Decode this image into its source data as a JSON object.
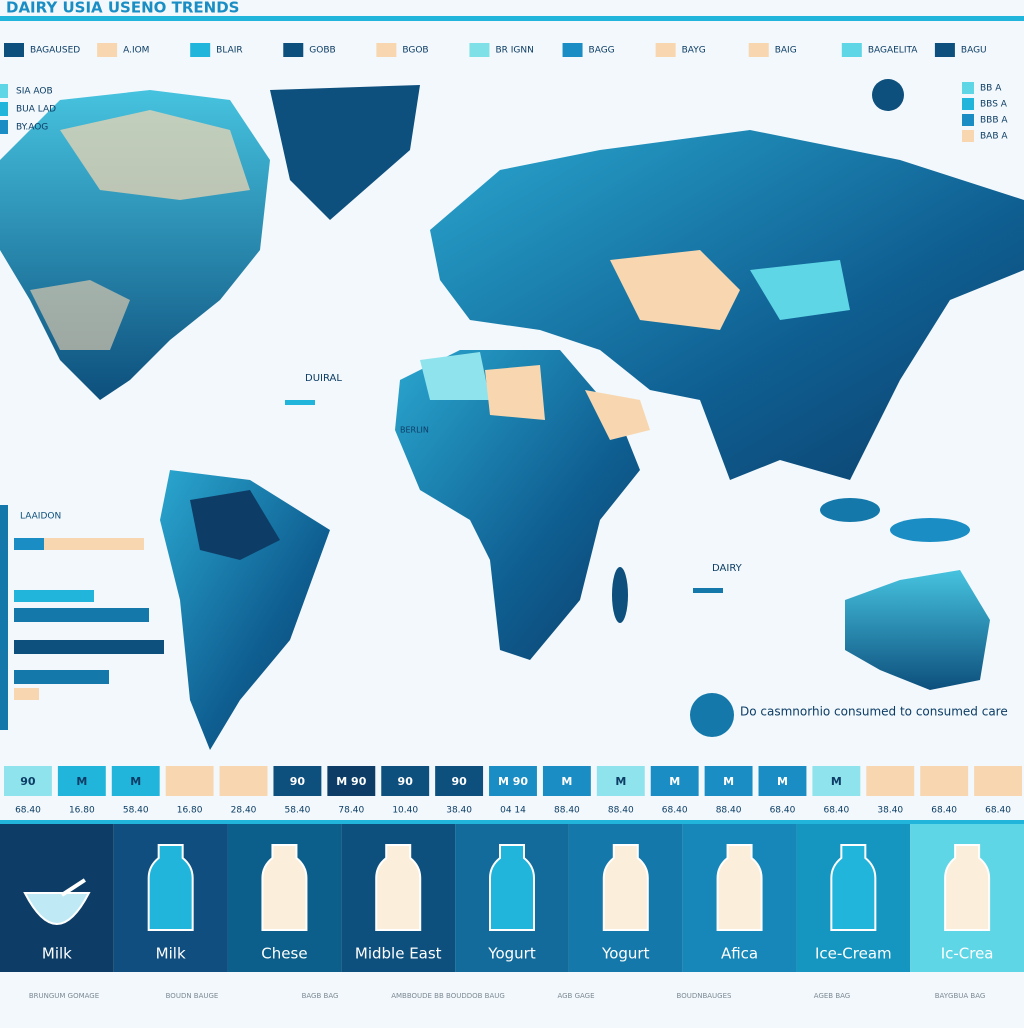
{
  "header": {
    "title": "DAIRY USIA USENO TRENDS"
  },
  "legend": [
    {
      "label": "BAGAUSED",
      "color": "#0d4f7d"
    },
    {
      "label": "A.IOM",
      "color": "#f8d7b0"
    },
    {
      "label": "BLAIR",
      "color": "#22b5dc"
    },
    {
      "label": "GOBB",
      "color": "#0d4f7d"
    },
    {
      "label": "BGOB",
      "color": "#f8d7b0"
    },
    {
      "label": "BR IGNN",
      "color": "#7fe0e8"
    },
    {
      "label": "BAGG",
      "color": "#1a8ec4"
    },
    {
      "label": "BAYG",
      "color": "#f8d7b0"
    },
    {
      "label": "BAIG",
      "color": "#f8d7b0"
    },
    {
      "label": "BAGAELITA",
      "color": "#5fd6e6"
    },
    {
      "label": "BAGU",
      "color": "#0d4f7d"
    }
  ],
  "map_key_left": [
    "SIA AOB",
    "BUA LAD",
    "BY.AOG"
  ],
  "map_key_right": [
    "BB A",
    "BBS A",
    "BBB A",
    "BAB A"
  ],
  "map_labels": {
    "west": "DUIRAL",
    "east": "DAIRY",
    "region": "BERLIN",
    "bars": "LAAIDON"
  },
  "note": "Do casmnorhio consumed to consumed care",
  "tiles": [
    {
      "value": "90",
      "label": "68.40",
      "color": "#8fe3ec"
    },
    {
      "value": "M",
      "label": "16.80",
      "color": "#22b5dc"
    },
    {
      "value": "M",
      "label": "58.40",
      "color": "#22b5dc"
    },
    {
      "label": "16.80",
      "color": "#f8d7b0"
    },
    {
      "label": "28.40",
      "color": "#f8d7b0"
    },
    {
      "value": "90",
      "label": "58.40",
      "color": "#0d4f7d"
    },
    {
      "value": "M 90",
      "label": "78.40",
      "color": "#0d3d66"
    },
    {
      "value": "90",
      "label": "10.40",
      "color": "#0d4f7d"
    },
    {
      "value": "90",
      "label": "38.40",
      "color": "#0d4f7d"
    },
    {
      "value": "M 90",
      "label": "04 14",
      "color": "#1a8ec4"
    },
    {
      "value": "M",
      "label": "88.40",
      "color": "#1a8ec4"
    },
    {
      "value": "M",
      "label": "88.40",
      "color": "#8fe3ec"
    },
    {
      "value": "M",
      "label": "68.40",
      "color": "#1a8ec4"
    },
    {
      "value": "M",
      "label": "88.40",
      "color": "#1a8ec4"
    },
    {
      "value": "M",
      "label": "68.40",
      "color": "#1a8ec4"
    },
    {
      "value": "M",
      "label": "68.40",
      "color": "#8fe3ec"
    },
    {
      "label": "38.40",
      "color": "#f8d7b0"
    },
    {
      "label": "68.40",
      "color": "#f8d7b0"
    },
    {
      "label": "68.40",
      "color": "#f8d7b0"
    }
  ],
  "panels": [
    {
      "label": "Milk",
      "color": "#0d3d66"
    },
    {
      "label": "Milk",
      "color": "#0f4e7e"
    },
    {
      "label": "Chese",
      "color": "#0b5f8a"
    },
    {
      "label": "Midble East",
      "color": "#0d4f7d"
    },
    {
      "label": "Yogurt",
      "color": "#136b9b"
    },
    {
      "label": "Yogurt",
      "color": "#1478aa"
    },
    {
      "label": "Afica",
      "color": "#1687b8"
    },
    {
      "label": "Ice-Cream",
      "color": "#1596c0"
    },
    {
      "label": "Ic-Crea",
      "color": "#5fd6e6"
    }
  ],
  "footer": [
    "BRUNGUM GOMAGE",
    "BOUDN BAUGE",
    "BAGB BAG",
    "AMBBOUDE BB BOUDDOB BAUG",
    "AGB GAGE",
    "BOUDNBAUGES",
    "AGEB BAG",
    "BAYGBUA BAG"
  ]
}
